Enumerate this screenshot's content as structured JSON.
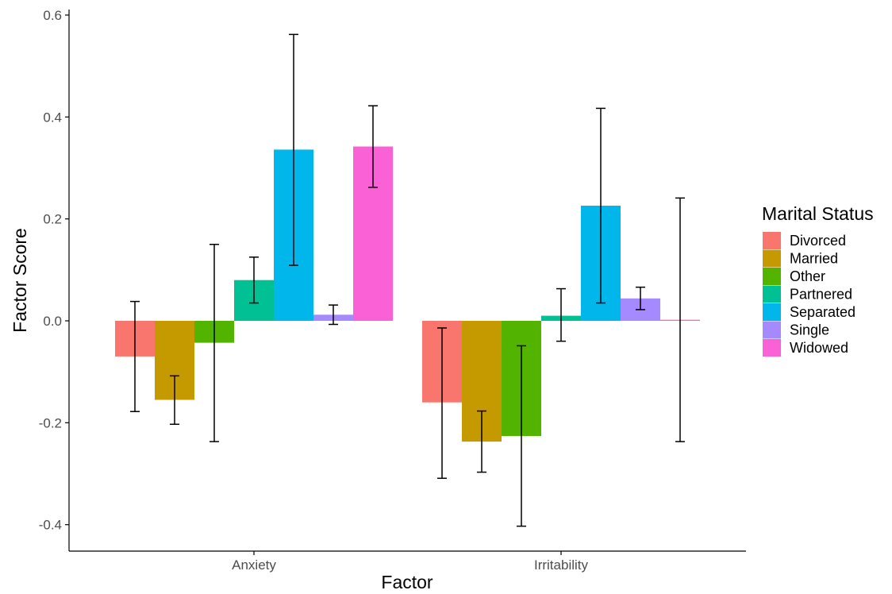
{
  "chart_data": {
    "type": "bar",
    "xlabel": "Factor",
    "ylabel": "Factor Score",
    "ylim": [
      -0.45,
      0.62
    ],
    "yticks": [
      "-0.4",
      "-0.2",
      "0.0",
      "0.2",
      "0.4",
      "0.6"
    ],
    "categories": [
      "Anxiety",
      "Irritability"
    ],
    "legend": {
      "title": "Marital Status",
      "position": "right"
    },
    "grid": false,
    "error_bars": true,
    "series": [
      {
        "name": "Divorced",
        "color": "#F8766D",
        "values": [
          -0.07,
          -0.16
        ],
        "err_low": [
          -0.178,
          -0.309
        ],
        "err_high": [
          0.038,
          -0.014
        ]
      },
      {
        "name": "Married",
        "color": "#C49A00",
        "values": [
          -0.155,
          -0.237
        ],
        "err_low": [
          -0.203,
          -0.297
        ],
        "err_high": [
          -0.108,
          -0.177
        ]
      },
      {
        "name": "Other",
        "color": "#53B400",
        "values": [
          -0.043,
          -0.226
        ],
        "err_low": [
          -0.237,
          -0.403
        ],
        "err_high": [
          0.15,
          -0.049
        ]
      },
      {
        "name": "Partnered",
        "color": "#00C094",
        "values": [
          0.08,
          0.01
        ],
        "err_low": [
          0.035,
          -0.04
        ],
        "err_high": [
          0.125,
          0.063
        ]
      },
      {
        "name": "Separated",
        "color": "#00B6EB",
        "values": [
          0.336,
          0.226
        ],
        "err_low": [
          0.109,
          0.035
        ],
        "err_high": [
          0.562,
          0.417
        ]
      },
      {
        "name": "Single",
        "color": "#A58AFF",
        "values": [
          0.012,
          0.044
        ],
        "err_low": [
          -0.007,
          0.022
        ],
        "err_high": [
          0.031,
          0.066
        ]
      },
      {
        "name": "Widowed",
        "color": "#FB61D7",
        "values": [
          0.342,
          0.002
        ],
        "err_low": [
          0.262,
          -0.237
        ],
        "err_high": [
          0.422,
          0.241
        ]
      }
    ]
  }
}
